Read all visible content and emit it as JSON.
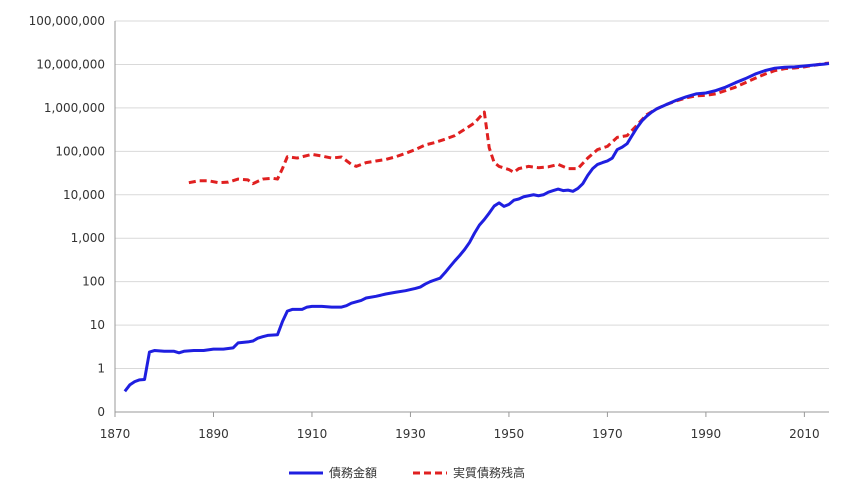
{
  "chart_data": {
    "type": "line",
    "title": "",
    "xlabel": "",
    "ylabel": "",
    "xlim": [
      1870,
      2015
    ],
    "ylim": [
      0.1,
      100000000
    ],
    "yscale": "log",
    "grid": {
      "y": true,
      "x": false
    },
    "legend_position": "bottom",
    "x_ticks": [
      1870,
      1890,
      1910,
      1930,
      1950,
      1970,
      1990,
      2010
    ],
    "x_tick_labels": [
      "1870",
      "1890",
      "1910",
      "1930",
      "1950",
      "1970",
      "1990",
      "2010"
    ],
    "y_ticks": [
      0.1,
      1,
      10,
      100,
      1000,
      10000,
      100000,
      1000000,
      10000000,
      100000000
    ],
    "y_tick_labels": [
      "0",
      "1",
      "10",
      "100",
      "1,000",
      "10,000",
      "100,000",
      "1,000,000",
      "10,000,000",
      "100,000,000"
    ],
    "series": [
      {
        "name": "債務金額",
        "color": "#1f1fe0",
        "dash": "solid",
        "points": [
          [
            1872,
            0.3
          ],
          [
            1873,
            0.42
          ],
          [
            1874,
            0.5
          ],
          [
            1875,
            0.55
          ],
          [
            1876,
            0.56
          ],
          [
            1877,
            2.4
          ],
          [
            1878,
            2.6
          ],
          [
            1880,
            2.5
          ],
          [
            1882,
            2.5
          ],
          [
            1883,
            2.3
          ],
          [
            1884,
            2.5
          ],
          [
            1886,
            2.6
          ],
          [
            1888,
            2.6
          ],
          [
            1890,
            2.8
          ],
          [
            1892,
            2.8
          ],
          [
            1894,
            3.0
          ],
          [
            1895,
            3.9
          ],
          [
            1897,
            4.1
          ],
          [
            1898,
            4.3
          ],
          [
            1899,
            5.0
          ],
          [
            1900,
            5.4
          ],
          [
            1901,
            5.8
          ],
          [
            1903,
            6.0
          ],
          [
            1904,
            12
          ],
          [
            1905,
            21
          ],
          [
            1906,
            23
          ],
          [
            1908,
            23
          ],
          [
            1909,
            26
          ],
          [
            1910,
            27
          ],
          [
            1912,
            27
          ],
          [
            1914,
            26
          ],
          [
            1916,
            26
          ],
          [
            1917,
            28
          ],
          [
            1918,
            32
          ],
          [
            1920,
            37
          ],
          [
            1921,
            42
          ],
          [
            1923,
            46
          ],
          [
            1925,
            52
          ],
          [
            1927,
            57
          ],
          [
            1929,
            62
          ],
          [
            1931,
            70
          ],
          [
            1932,
            75
          ],
          [
            1933,
            88
          ],
          [
            1934,
            100
          ],
          [
            1935,
            110
          ],
          [
            1936,
            120
          ],
          [
            1937,
            160
          ],
          [
            1938,
            220
          ],
          [
            1939,
            300
          ],
          [
            1940,
            400
          ],
          [
            1941,
            550
          ],
          [
            1942,
            800
          ],
          [
            1943,
            1300
          ],
          [
            1944,
            2000
          ],
          [
            1945,
            2700
          ],
          [
            1946,
            3800
          ],
          [
            1947,
            5500
          ],
          [
            1948,
            6500
          ],
          [
            1949,
            5400
          ],
          [
            1950,
            6000
          ],
          [
            1951,
            7500
          ],
          [
            1952,
            8000
          ],
          [
            1953,
            9000
          ],
          [
            1954,
            9500
          ],
          [
            1955,
            10000
          ],
          [
            1956,
            9500
          ],
          [
            1957,
            10000
          ],
          [
            1958,
            11500
          ],
          [
            1959,
            12500
          ],
          [
            1960,
            13500
          ],
          [
            1961,
            12500
          ],
          [
            1962,
            12800
          ],
          [
            1963,
            12000
          ],
          [
            1964,
            14000
          ],
          [
            1965,
            18000
          ],
          [
            1966,
            28000
          ],
          [
            1967,
            40000
          ],
          [
            1968,
            50000
          ],
          [
            1969,
            55000
          ],
          [
            1970,
            60000
          ],
          [
            1971,
            70000
          ],
          [
            1972,
            110000
          ],
          [
            1973,
            125000
          ],
          [
            1974,
            150000
          ],
          [
            1975,
            230000
          ],
          [
            1976,
            350000
          ],
          [
            1977,
            500000
          ],
          [
            1978,
            650000
          ],
          [
            1979,
            800000
          ],
          [
            1980,
            950000
          ],
          [
            1982,
            1200000
          ],
          [
            1984,
            1500000
          ],
          [
            1986,
            1800000
          ],
          [
            1988,
            2100000
          ],
          [
            1990,
            2200000
          ],
          [
            1992,
            2500000
          ],
          [
            1994,
            3000000
          ],
          [
            1996,
            3800000
          ],
          [
            1998,
            4700000
          ],
          [
            2000,
            6000000
          ],
          [
            2002,
            7200000
          ],
          [
            2004,
            8200000
          ],
          [
            2006,
            8600000
          ],
          [
            2008,
            8800000
          ],
          [
            2010,
            9200000
          ],
          [
            2012,
            9700000
          ],
          [
            2014,
            10200000
          ],
          [
            2015,
            10500000
          ]
        ]
      },
      {
        "name": "実質債務残高",
        "color": "#e02020",
        "dash": "dashed",
        "points": [
          [
            1885,
            19000
          ],
          [
            1887,
            21000
          ],
          [
            1889,
            21000
          ],
          [
            1891,
            19000
          ],
          [
            1893,
            19500
          ],
          [
            1895,
            23000
          ],
          [
            1897,
            22000
          ],
          [
            1898,
            18000
          ],
          [
            1900,
            23000
          ],
          [
            1902,
            24000
          ],
          [
            1903,
            23000
          ],
          [
            1904,
            40000
          ],
          [
            1905,
            75000
          ],
          [
            1907,
            70000
          ],
          [
            1909,
            80000
          ],
          [
            1910,
            85000
          ],
          [
            1912,
            78000
          ],
          [
            1914,
            70000
          ],
          [
            1916,
            74000
          ],
          [
            1918,
            50000
          ],
          [
            1919,
            45000
          ],
          [
            1921,
            55000
          ],
          [
            1923,
            60000
          ],
          [
            1925,
            65000
          ],
          [
            1927,
            75000
          ],
          [
            1929,
            90000
          ],
          [
            1931,
            110000
          ],
          [
            1933,
            140000
          ],
          [
            1935,
            160000
          ],
          [
            1937,
            190000
          ],
          [
            1939,
            230000
          ],
          [
            1941,
            320000
          ],
          [
            1943,
            450000
          ],
          [
            1944,
            600000
          ],
          [
            1945,
            800000
          ],
          [
            1946,
            120000
          ],
          [
            1947,
            55000
          ],
          [
            1948,
            45000
          ],
          [
            1950,
            38000
          ],
          [
            1951,
            33000
          ],
          [
            1952,
            40000
          ],
          [
            1954,
            45000
          ],
          [
            1956,
            42000
          ],
          [
            1958,
            44000
          ],
          [
            1960,
            50000
          ],
          [
            1962,
            40000
          ],
          [
            1964,
            40000
          ],
          [
            1966,
            70000
          ],
          [
            1968,
            110000
          ],
          [
            1970,
            130000
          ],
          [
            1972,
            210000
          ],
          [
            1974,
            230000
          ],
          [
            1976,
            400000
          ],
          [
            1978,
            700000
          ],
          [
            1980,
            950000
          ],
          [
            1982,
            1200000
          ],
          [
            1984,
            1450000
          ],
          [
            1986,
            1700000
          ],
          [
            1988,
            1900000
          ],
          [
            1990,
            1950000
          ],
          [
            1992,
            2100000
          ],
          [
            1994,
            2500000
          ],
          [
            1996,
            3000000
          ],
          [
            1998,
            3800000
          ],
          [
            2000,
            4800000
          ],
          [
            2002,
            6000000
          ],
          [
            2004,
            7200000
          ],
          [
            2006,
            8000000
          ],
          [
            2008,
            8300000
          ],
          [
            2010,
            8800000
          ],
          [
            2012,
            9600000
          ],
          [
            2014,
            10500000
          ],
          [
            2015,
            10700000
          ]
        ]
      }
    ]
  }
}
